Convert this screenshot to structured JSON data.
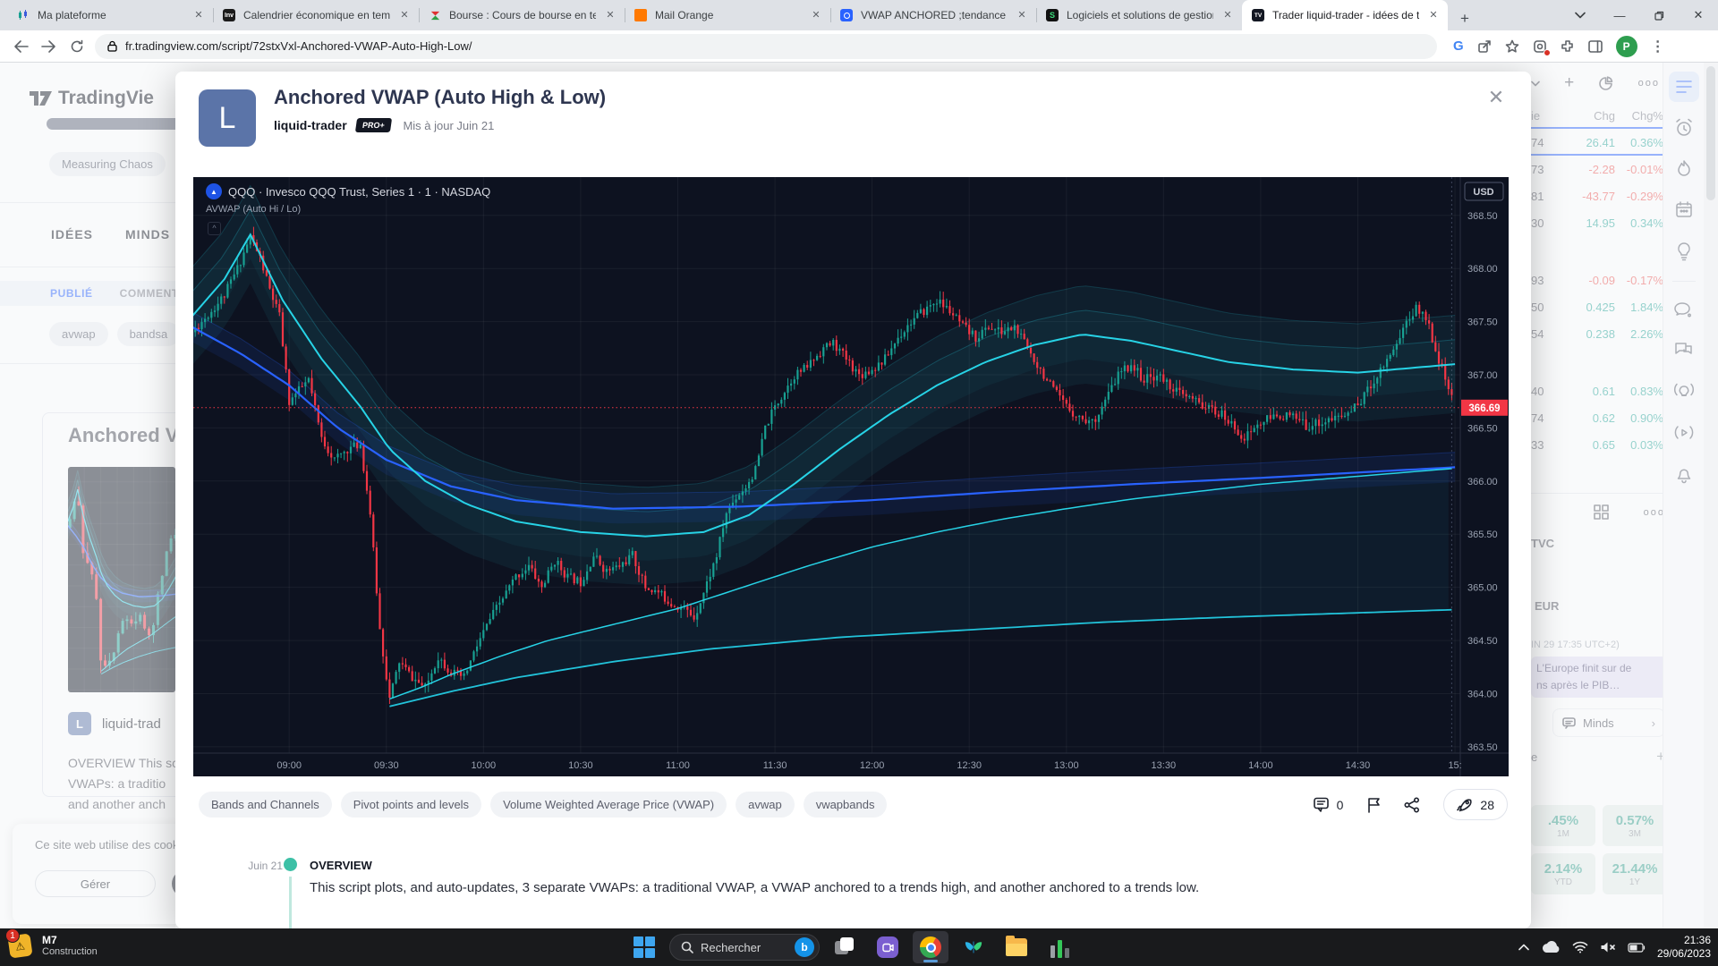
{
  "browser": {
    "tabs": [
      {
        "label": "Ma plateforme",
        "icon": "platform"
      },
      {
        "label": "Calendrier économique en temp",
        "icon": "investing"
      },
      {
        "label": "Bourse : Cours de bourse en tem",
        "icon": "bourse"
      },
      {
        "label": "Mail Orange",
        "icon": "orange"
      },
      {
        "label": "VWAP ANCHORED ;tendance ha",
        "icon": "tvsnap"
      },
      {
        "label": "Logiciels et solutions de gestion",
        "icon": "sage"
      },
      {
        "label": "Trader liquid-trader - idées de t",
        "icon": "tradingview",
        "active": true
      }
    ],
    "url": "fr.tradingview.com/script/72stxVxl-Anchored-VWAP-Auto-High-Low/",
    "profile_initial": "P"
  },
  "bg_left": {
    "logo_text": "TradingVie",
    "filter_chip": "Measuring Chaos",
    "nav_tabs": [
      "IDÉES",
      "MINDS"
    ],
    "sub_tabs": [
      "PUBLIÉ",
      "COMMENTÉ"
    ],
    "tag_chips": [
      "avwap",
      "bandsa"
    ],
    "card": {
      "title": "Anchored V",
      "author": "liquid-trad",
      "avatar_letter": "L",
      "body_lines": [
        "OVERVIEW This sc",
        "VWAPs: a traditio",
        "and another anch"
      ]
    },
    "cookie": {
      "message": "Ce site web utilise des cookie",
      "manage_label": "Gérer"
    }
  },
  "bg_right": {
    "watchlist": {
      "headers": [
        "ie",
        "Chg",
        "Chg%"
      ],
      "rows": [
        {
          "last": "74",
          "chg": "26.41",
          "chgp": "0.36%",
          "dir": "up",
          "last_color": "neutral",
          "selected": true
        },
        {
          "last": "73",
          "chg": "-2.28",
          "chgp": "-0.01%",
          "dir": "down",
          "last_color": "neutral"
        },
        {
          "last": "81",
          "chg": "-43.77",
          "chgp": "-0.29%",
          "dir": "down",
          "last_color": "down"
        },
        {
          "last": "30",
          "chg": "14.95",
          "chgp": "0.34%",
          "dir": "up",
          "last_color": "down"
        },
        {
          "gap": true
        },
        {
          "last": "93",
          "chg": "-0.09",
          "chgp": "-0.17%",
          "dir": "down",
          "last_color": "neutral"
        },
        {
          "last": "50",
          "chg": "0.425",
          "chgp": "1.84%",
          "dir": "up",
          "last_color": "neutral"
        },
        {
          "last": "54",
          "chg": "0.238",
          "chgp": "2.26%",
          "dir": "up",
          "last_color": "neutral"
        },
        {
          "gap": true
        },
        {
          "last": "40",
          "chg": "0.61",
          "chgp": "0.83%",
          "dir": "up",
          "last_color": "up"
        },
        {
          "last": "74",
          "chg": "0.62",
          "chgp": "0.90%",
          "dir": "up",
          "last_color": "neutral"
        },
        {
          "last": "33",
          "chg": "0.65",
          "chgp": "0.03%",
          "dir": "up",
          "last_color": "neutral"
        }
      ]
    },
    "sections": {
      "symbol_partial": "TVC",
      "symbol2_partial": "EUR",
      "utc_note": "IN 29 17:35 UTC+2)",
      "news_lines": [
        "L'Europe finit sur de",
        "ns après le PIB…"
      ],
      "minds_label": "Minds",
      "add_row_partial": "e"
    },
    "perf_tiles": [
      {
        "value": ".45%",
        "label": "1M"
      },
      {
        "value": "0.57%",
        "label": "3M"
      },
      {
        "value": "2.14%",
        "label": "YTD"
      },
      {
        "value": "21.44%",
        "label": "1Y"
      }
    ],
    "rail_icons": [
      "watchlist",
      "alerts",
      "hotlists",
      "calendar",
      "ideas",
      "divider",
      "chat",
      "conversations",
      "live",
      "streams",
      "notifications"
    ],
    "help_label": "?"
  },
  "modal": {
    "title": "Anchored VWAP (Auto High & Low)",
    "author": "liquid-trader",
    "author_badge": "PRO+",
    "updated": "Mis à jour Juin 21",
    "avatar_letter": "L",
    "tags": [
      "Bands and Channels",
      "Pivot points and levels",
      "Volume Weighted Average Price (VWAP)",
      "avwap",
      "vwapbands"
    ],
    "comments_count": "0",
    "boosts_count": "28",
    "timeline": {
      "date": "Juin 21",
      "heading": "OVERVIEW",
      "body": "This script plots, and auto-updates, 3 separate VWAPs: a traditional VWAP, a VWAP anchored to a trends high, and another anchored to a trends low."
    }
  },
  "chart_data": {
    "type": "candlestick",
    "symbol_title": "QQQ · Invesco QQQ Trust, Series 1 · 1 · NASDAQ",
    "indicator": "AVWAP (Auto Hi / Lo)",
    "currency_badge": "USD",
    "last_price": "366.69",
    "last_price_value": 366.69,
    "ylim": [
      363.44,
      368.86
    ],
    "price_ticks": [
      "368.50",
      "368.00",
      "367.50",
      "367.00",
      "366.50",
      "366.00",
      "365.50",
      "365.00",
      "364.50",
      "364.00",
      "363.50"
    ],
    "time_ticks": [
      {
        "m": 30,
        "label": "09:00"
      },
      {
        "m": 60,
        "label": "09:30"
      },
      {
        "m": 90,
        "label": "10:00"
      },
      {
        "m": 120,
        "label": "10:30"
      },
      {
        "m": 150,
        "label": "11:00"
      },
      {
        "m": 180,
        "label": "11:30"
      },
      {
        "m": 210,
        "label": "12:00"
      },
      {
        "m": 240,
        "label": "12:30"
      },
      {
        "m": 270,
        "label": "13:00"
      },
      {
        "m": 300,
        "label": "13:30"
      },
      {
        "m": 330,
        "label": "14:00"
      },
      {
        "m": 360,
        "label": "14:30"
      },
      {
        "m": 390,
        "label": "15:"
      }
    ],
    "x_map": {
      "m0": 30,
      "f0": 0.0757,
      "m1": 390,
      "f1": 0.9958
    },
    "ohlc": {
      "seed": 11,
      "count": 390,
      "body_noise": 0.09,
      "wick_noise": 0.08
    },
    "price_path": [
      [
        0,
        367.4
      ],
      [
        6,
        367.6
      ],
      [
        10,
        367.75
      ],
      [
        14,
        368.0
      ],
      [
        18,
        368.3
      ],
      [
        21,
        368.1
      ],
      [
        24,
        367.8
      ],
      [
        27,
        367.55
      ],
      [
        30,
        366.75
      ],
      [
        33,
        366.85
      ],
      [
        36,
        366.95
      ],
      [
        40,
        366.4
      ],
      [
        44,
        366.2
      ],
      [
        48,
        366.3
      ],
      [
        52,
        366.35
      ],
      [
        55,
        365.7
      ],
      [
        58,
        364.6
      ],
      [
        61,
        363.95
      ],
      [
        64,
        364.3
      ],
      [
        68,
        364.15
      ],
      [
        72,
        364.05
      ],
      [
        76,
        364.35
      ],
      [
        80,
        364.2
      ],
      [
        84,
        364.15
      ],
      [
        88,
        364.45
      ],
      [
        92,
        364.7
      ],
      [
        96,
        364.9
      ],
      [
        100,
        365.1
      ],
      [
        104,
        365.2
      ],
      [
        108,
        365.0
      ],
      [
        112,
        365.25
      ],
      [
        116,
        365.1
      ],
      [
        120,
        365.05
      ],
      [
        124,
        365.3
      ],
      [
        128,
        365.15
      ],
      [
        132,
        365.2
      ],
      [
        136,
        365.3
      ],
      [
        140,
        365.0
      ],
      [
        144,
        364.95
      ],
      [
        148,
        364.85
      ],
      [
        152,
        364.8
      ],
      [
        155,
        364.72
      ],
      [
        158,
        364.95
      ],
      [
        162,
        365.3
      ],
      [
        165,
        365.7
      ],
      [
        168,
        365.85
      ],
      [
        171,
        365.95
      ],
      [
        174,
        366.1
      ],
      [
        177,
        366.5
      ],
      [
        180,
        366.7
      ],
      [
        183,
        366.85
      ],
      [
        186,
        367.0
      ],
      [
        189,
        367.05
      ],
      [
        192,
        367.15
      ],
      [
        195,
        367.25
      ],
      [
        198,
        367.3
      ],
      [
        202,
        367.15
      ],
      [
        206,
        367.0
      ],
      [
        210,
        367.05
      ],
      [
        214,
        367.15
      ],
      [
        218,
        367.35
      ],
      [
        222,
        367.5
      ],
      [
        226,
        367.6
      ],
      [
        230,
        367.7
      ],
      [
        234,
        367.6
      ],
      [
        238,
        367.45
      ],
      [
        242,
        367.35
      ],
      [
        246,
        367.45
      ],
      [
        250,
        367.4
      ],
      [
        254,
        367.45
      ],
      [
        258,
        367.25
      ],
      [
        262,
        367.05
      ],
      [
        266,
        366.85
      ],
      [
        270,
        366.7
      ],
      [
        274,
        366.6
      ],
      [
        278,
        366.55
      ],
      [
        282,
        366.75
      ],
      [
        286,
        367.0
      ],
      [
        290,
        367.1
      ],
      [
        294,
        366.95
      ],
      [
        298,
        367.0
      ],
      [
        302,
        366.9
      ],
      [
        306,
        366.8
      ],
      [
        310,
        366.75
      ],
      [
        314,
        366.68
      ],
      [
        318,
        366.62
      ],
      [
        322,
        366.5
      ],
      [
        325,
        366.4
      ],
      [
        328,
        366.5
      ],
      [
        332,
        366.58
      ],
      [
        336,
        366.62
      ],
      [
        340,
        366.6
      ],
      [
        344,
        366.52
      ],
      [
        348,
        366.55
      ],
      [
        352,
        366.58
      ],
      [
        356,
        366.62
      ],
      [
        360,
        366.72
      ],
      [
        364,
        366.9
      ],
      [
        368,
        367.1
      ],
      [
        372,
        367.3
      ],
      [
        375,
        367.5
      ],
      [
        378,
        367.62
      ],
      [
        381,
        367.55
      ],
      [
        384,
        367.25
      ],
      [
        387,
        366.95
      ],
      [
        390,
        366.69
      ]
    ],
    "lines": [
      {
        "key": "blue_vwap",
        "color": "#2962ff",
        "width": 2.2,
        "points": [
          [
            0,
            367.45
          ],
          [
            15,
            367.2
          ],
          [
            30,
            366.9
          ],
          [
            45,
            366.5
          ],
          [
            60,
            366.2
          ],
          [
            80,
            365.95
          ],
          [
            100,
            365.82
          ],
          [
            130,
            365.74
          ],
          [
            170,
            365.76
          ],
          [
            210,
            365.82
          ],
          [
            250,
            365.9
          ],
          [
            290,
            365.97
          ],
          [
            330,
            366.03
          ],
          [
            360,
            366.08
          ],
          [
            390,
            366.13
          ]
        ]
      },
      {
        "key": "avwap_high",
        "color": "#27d3e6",
        "width": 2,
        "points": [
          [
            0,
            367.55
          ],
          [
            10,
            367.9
          ],
          [
            18,
            368.32
          ],
          [
            28,
            367.7
          ],
          [
            40,
            367.15
          ],
          [
            52,
            366.7
          ],
          [
            61,
            366.3
          ],
          [
            72,
            366.0
          ],
          [
            85,
            365.78
          ],
          [
            100,
            365.62
          ],
          [
            120,
            365.52
          ],
          [
            140,
            365.48
          ],
          [
            158,
            365.52
          ],
          [
            172,
            365.68
          ],
          [
            185,
            365.95
          ],
          [
            200,
            366.3
          ],
          [
            215,
            366.62
          ],
          [
            230,
            366.9
          ],
          [
            245,
            367.12
          ],
          [
            260,
            367.28
          ],
          [
            275,
            367.38
          ],
          [
            290,
            367.32
          ],
          [
            305,
            367.22
          ],
          [
            320,
            367.12
          ],
          [
            340,
            367.05
          ],
          [
            360,
            367.02
          ],
          [
            375,
            367.06
          ],
          [
            390,
            367.1
          ]
        ]
      },
      {
        "key": "avwap_low",
        "color": "#27d3e6",
        "width": 1.5,
        "points": [
          [
            61,
            363.95
          ],
          [
            70,
            364.05
          ],
          [
            80,
            364.18
          ],
          [
            95,
            364.35
          ],
          [
            110,
            364.5
          ],
          [
            130,
            364.65
          ],
          [
            150,
            364.8
          ],
          [
            170,
            365.0
          ],
          [
            190,
            365.2
          ],
          [
            210,
            365.38
          ],
          [
            230,
            365.52
          ],
          [
            250,
            365.64
          ],
          [
            270,
            365.74
          ],
          [
            290,
            365.83
          ],
          [
            310,
            365.9
          ],
          [
            330,
            365.97
          ],
          [
            350,
            366.02
          ],
          [
            370,
            366.07
          ],
          [
            390,
            366.12
          ]
        ]
      },
      {
        "key": "low_band",
        "color": "#22c3da",
        "width": 1.8,
        "points": [
          [
            61,
            363.88
          ],
          [
            80,
            364.02
          ],
          [
            100,
            364.15
          ],
          [
            130,
            364.3
          ],
          [
            160,
            364.42
          ],
          [
            200,
            364.53
          ],
          [
            240,
            364.6
          ],
          [
            280,
            364.67
          ],
          [
            320,
            364.72
          ],
          [
            360,
            364.76
          ],
          [
            390,
            364.79
          ]
        ]
      }
    ],
    "envelopes": [
      {
        "line": "avwap_high",
        "off": 0.46,
        "fill": "rgba(39,211,230,0.07)",
        "stroke": "rgba(39,211,230,0.18)"
      },
      {
        "line": "avwap_high",
        "off": 0.23,
        "fill": "rgba(39,211,230,0.05)",
        "stroke": "rgba(39,211,230,0.25)"
      },
      {
        "line": "avwap_low",
        "to": "low_band",
        "fill": "rgba(39,211,230,0.06)",
        "stroke": "rgba(39,211,230,0.15)"
      },
      {
        "line": "blue_vwap",
        "off": 0.14,
        "fill": "rgba(41,98,255,0.10)",
        "stroke": "rgba(41,98,255,0.25)"
      }
    ],
    "colors": {
      "bg": "#0d1220",
      "grid": "rgba(255,255,255,0.055)",
      "up": "#18a092",
      "down": "#f23645",
      "axis_text": "#9aa2b1",
      "axis_line": "#2a3040",
      "last_badge": "#f23645"
    }
  },
  "taskbar": {
    "widget_title": "M7",
    "widget_sub": "Construction",
    "widget_badge": "1",
    "search_placeholder": "Rechercher",
    "clock_time": "21:36",
    "clock_date": "29/06/2023"
  }
}
